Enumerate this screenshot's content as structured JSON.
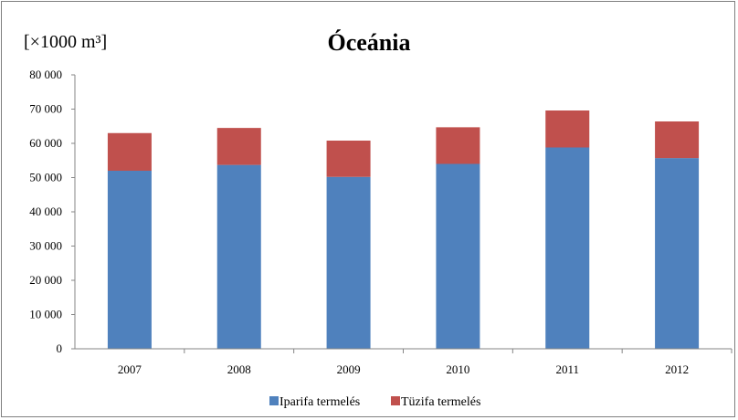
{
  "chart_data": {
    "type": "bar",
    "stacked": true,
    "title": "Óceánia",
    "unit_label": "[×1000 m³]",
    "categories": [
      "2007",
      "2008",
      "2009",
      "2010",
      "2011",
      "2012"
    ],
    "series": [
      {
        "name": "Iparifa termelés",
        "color": "#4f81bd",
        "values": [
          52000,
          53700,
          50200,
          54000,
          58800,
          55700
        ]
      },
      {
        "name": "Tüzifa termelés",
        "color": "#c0504d",
        "values": [
          11000,
          10800,
          10600,
          10700,
          10800,
          10700
        ]
      }
    ],
    "y_ticks": [
      "0",
      "10 000",
      "20 000",
      "30 000",
      "40 000",
      "50 000",
      "60 000",
      "70 000",
      "80 000"
    ],
    "ylim": [
      0,
      80000
    ],
    "grid": false,
    "legend_position": "bottom"
  }
}
